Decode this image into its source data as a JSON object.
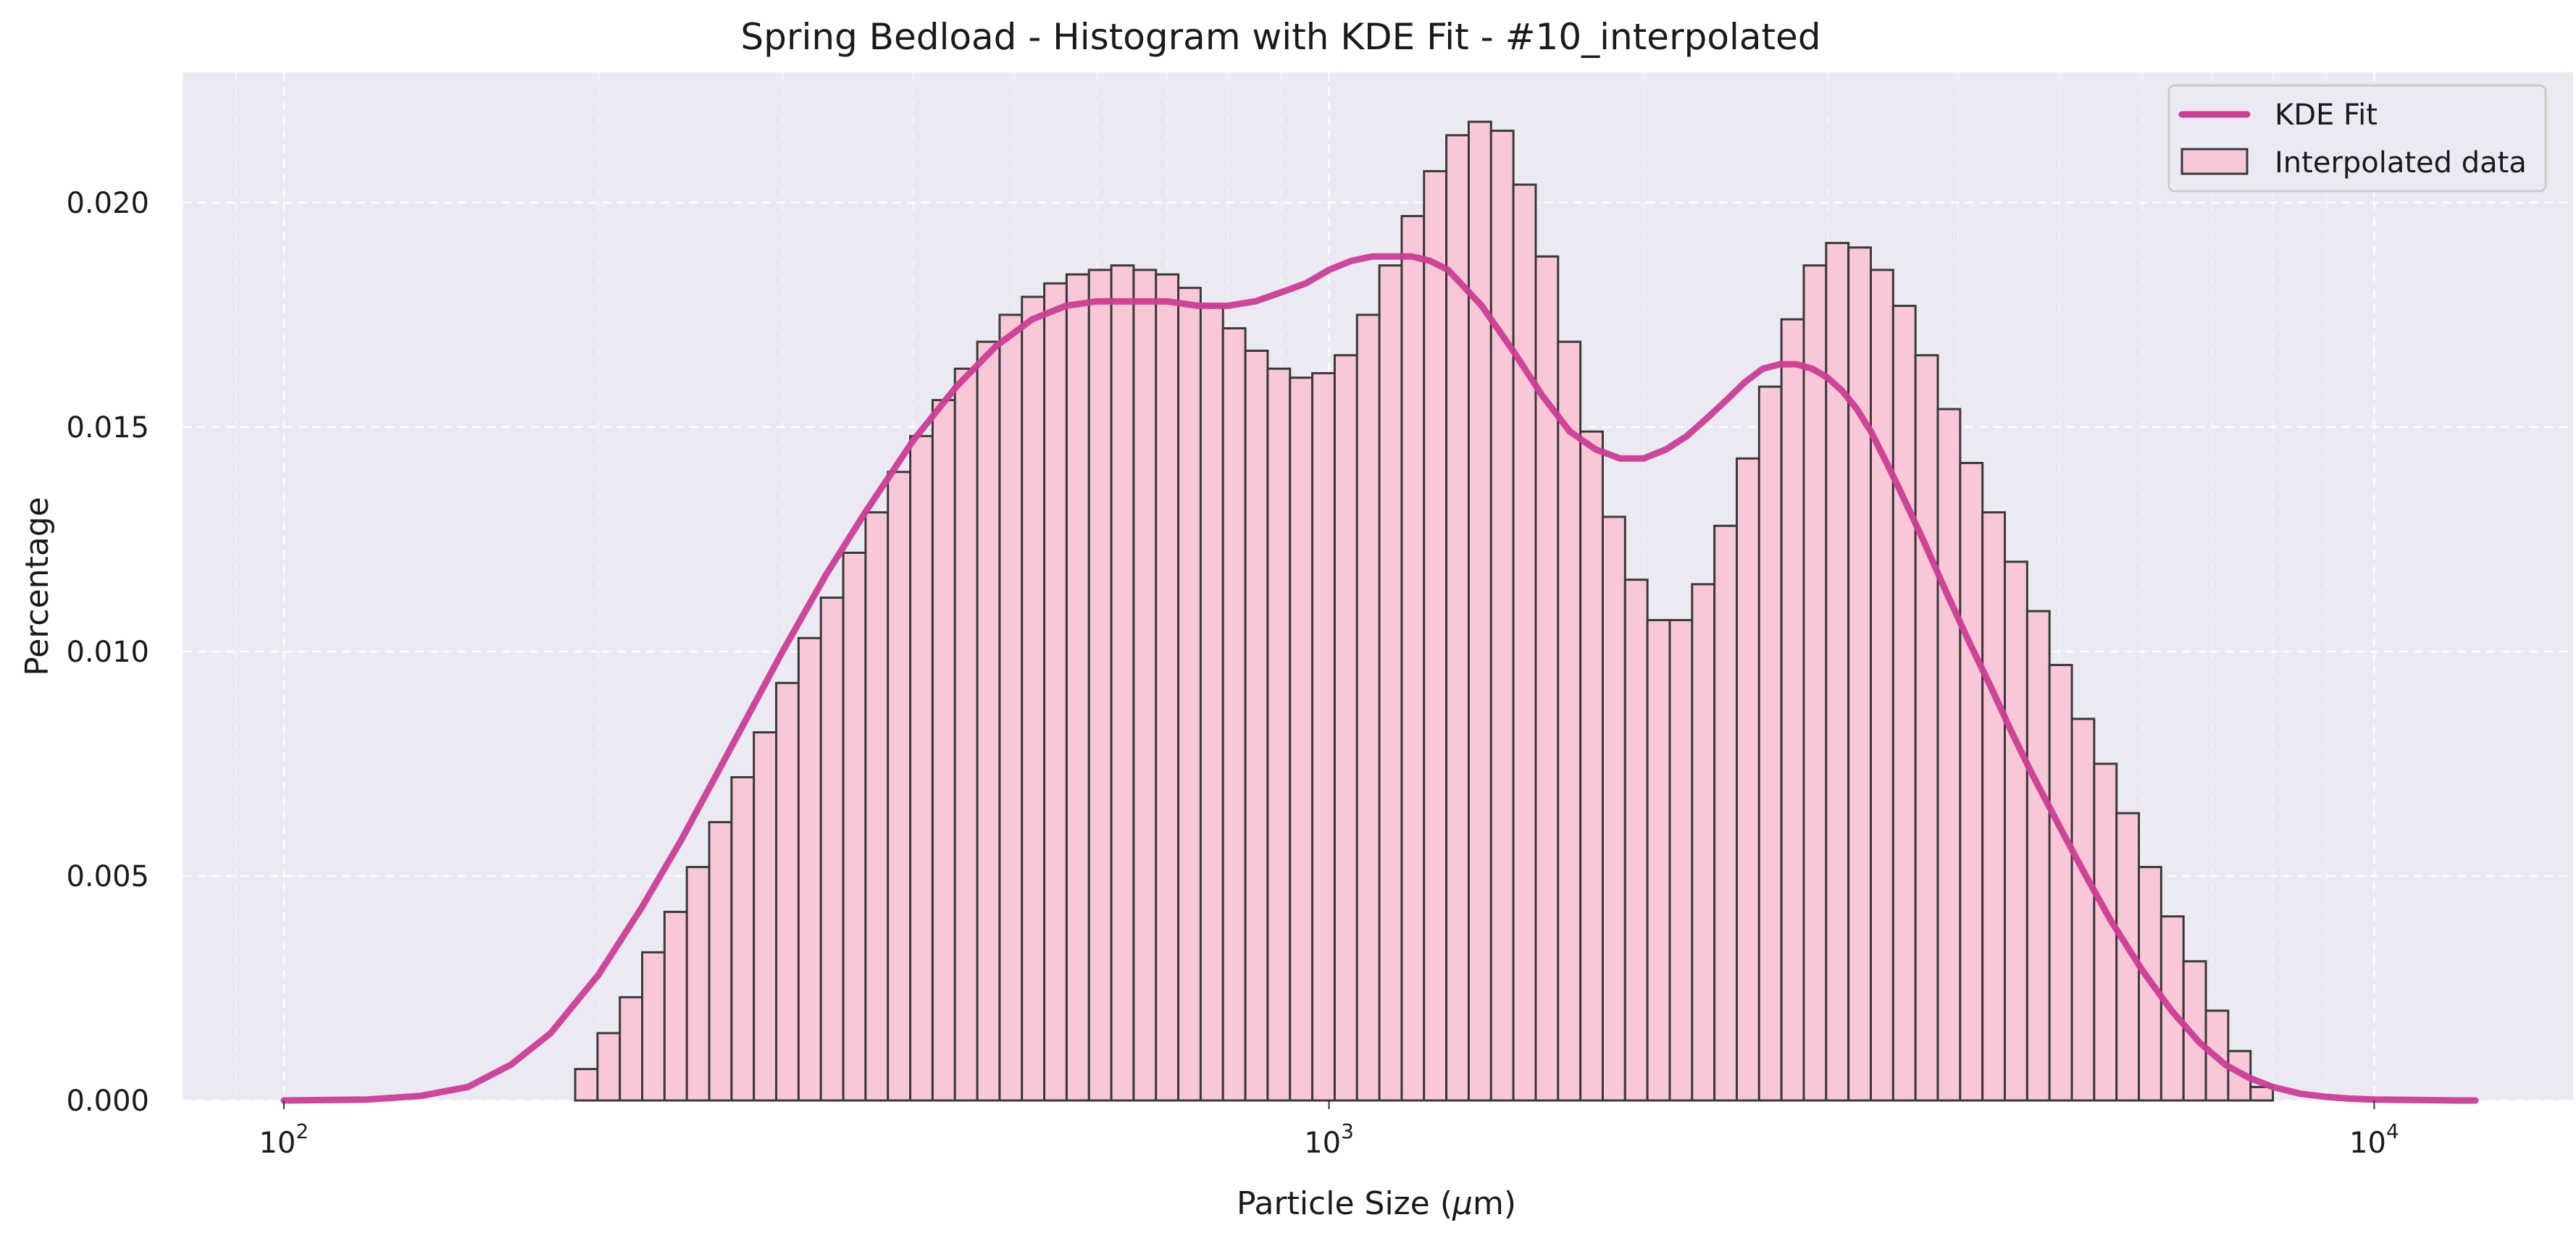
{
  "chart_data": {
    "type": "bar",
    "title": "Spring Bedload - Histogram with KDE Fit - #10_interpolated",
    "xlabel": "Particle Size (",
    "xlabel_symbol": "μ",
    "xlabel_unit": "m)",
    "ylabel": "Percentage",
    "x_scale": "log",
    "xlim": [
      80,
      15500
    ],
    "ylim": [
      0,
      0.0229
    ],
    "grid": true,
    "legend_position": "top-right",
    "x_ticks": [
      {
        "value": 100,
        "base": "10",
        "exp": "2"
      },
      {
        "value": 1000,
        "base": "10",
        "exp": "3"
      },
      {
        "value": 10000,
        "base": "10",
        "exp": "4"
      }
    ],
    "y_ticks": [
      {
        "value": 0,
        "label": "0.000"
      },
      {
        "value": 0.005,
        "label": "0.005"
      },
      {
        "value": 0.01,
        "label": "0.010"
      },
      {
        "value": 0.015,
        "label": "0.015"
      },
      {
        "value": 0.02,
        "label": "0.020"
      }
    ],
    "histogram": {
      "name": "Interpolated data",
      "color": "#f9c8d6",
      "edge_color": "#3a3a3a",
      "bin_start": 190,
      "bin_end": 8000,
      "values": [
        0.0007,
        0.0015,
        0.0023,
        0.0033,
        0.0042,
        0.0052,
        0.0062,
        0.0072,
        0.0082,
        0.0093,
        0.0103,
        0.0112,
        0.0122,
        0.0131,
        0.014,
        0.0148,
        0.0156,
        0.0163,
        0.0169,
        0.0175,
        0.0179,
        0.0182,
        0.0184,
        0.0185,
        0.0186,
        0.0185,
        0.0184,
        0.0181,
        0.0177,
        0.0172,
        0.0167,
        0.0163,
        0.0161,
        0.0162,
        0.0166,
        0.0175,
        0.0186,
        0.0197,
        0.0207,
        0.0215,
        0.0218,
        0.0216,
        0.0204,
        0.0188,
        0.0169,
        0.0149,
        0.013,
        0.0116,
        0.0107,
        0.0107,
        0.0115,
        0.0128,
        0.0143,
        0.0159,
        0.0174,
        0.0186,
        0.0191,
        0.019,
        0.0185,
        0.0177,
        0.0166,
        0.0154,
        0.0142,
        0.0131,
        0.012,
        0.0109,
        0.0097,
        0.0085,
        0.0075,
        0.0064,
        0.0052,
        0.0041,
        0.0031,
        0.002,
        0.0011,
        0.0003
      ]
    },
    "kde": {
      "name": "KDE Fit",
      "color": "#cc3d96",
      "x": [
        100,
        120,
        135,
        150,
        165,
        180,
        200,
        220,
        240,
        260,
        280,
        300,
        330,
        360,
        400,
        440,
        480,
        520,
        560,
        600,
        650,
        700,
        750,
        800,
        850,
        900,
        950,
        1000,
        1050,
        1100,
        1150,
        1200,
        1250,
        1300,
        1400,
        1500,
        1600,
        1700,
        1800,
        1900,
        2000,
        2100,
        2200,
        2300,
        2400,
        2500,
        2600,
        2700,
        2800,
        2900,
        3000,
        3100,
        3200,
        3300,
        3400,
        3500,
        3700,
        3900,
        4100,
        4300,
        4500,
        4700,
        5000,
        5300,
        5600,
        6000,
        6400,
        6800,
        7200,
        7600,
        8000,
        8500,
        9000,
        9500,
        10000,
        11000,
        12000,
        12500
      ],
      "y": [
        0.0,
        2e-05,
        0.0001,
        0.0003,
        0.0008,
        0.0015,
        0.0028,
        0.0043,
        0.0058,
        0.0073,
        0.0087,
        0.01,
        0.0117,
        0.0131,
        0.0147,
        0.0159,
        0.0168,
        0.0174,
        0.0177,
        0.0178,
        0.0178,
        0.0178,
        0.0177,
        0.0177,
        0.0178,
        0.018,
        0.0182,
        0.0185,
        0.0187,
        0.0188,
        0.0188,
        0.0188,
        0.0187,
        0.0185,
        0.0177,
        0.0167,
        0.0157,
        0.0149,
        0.0145,
        0.0143,
        0.0143,
        0.0145,
        0.0148,
        0.0152,
        0.0156,
        0.016,
        0.0163,
        0.0164,
        0.0164,
        0.0163,
        0.0161,
        0.0158,
        0.0154,
        0.0149,
        0.0143,
        0.0137,
        0.0125,
        0.0113,
        0.0102,
        0.0092,
        0.0082,
        0.0073,
        0.0061,
        0.005,
        0.004,
        0.0029,
        0.002,
        0.0013,
        0.0008,
        0.0005,
        0.0003,
        0.00015,
        8e-05,
        4e-05,
        2e-05,
        1e-05,
        0.0,
        0.0
      ]
    }
  },
  "colors": {
    "plot_background": "#eaeaf2",
    "grid": "#ffffff",
    "legend_background": "#eaeaf2"
  }
}
